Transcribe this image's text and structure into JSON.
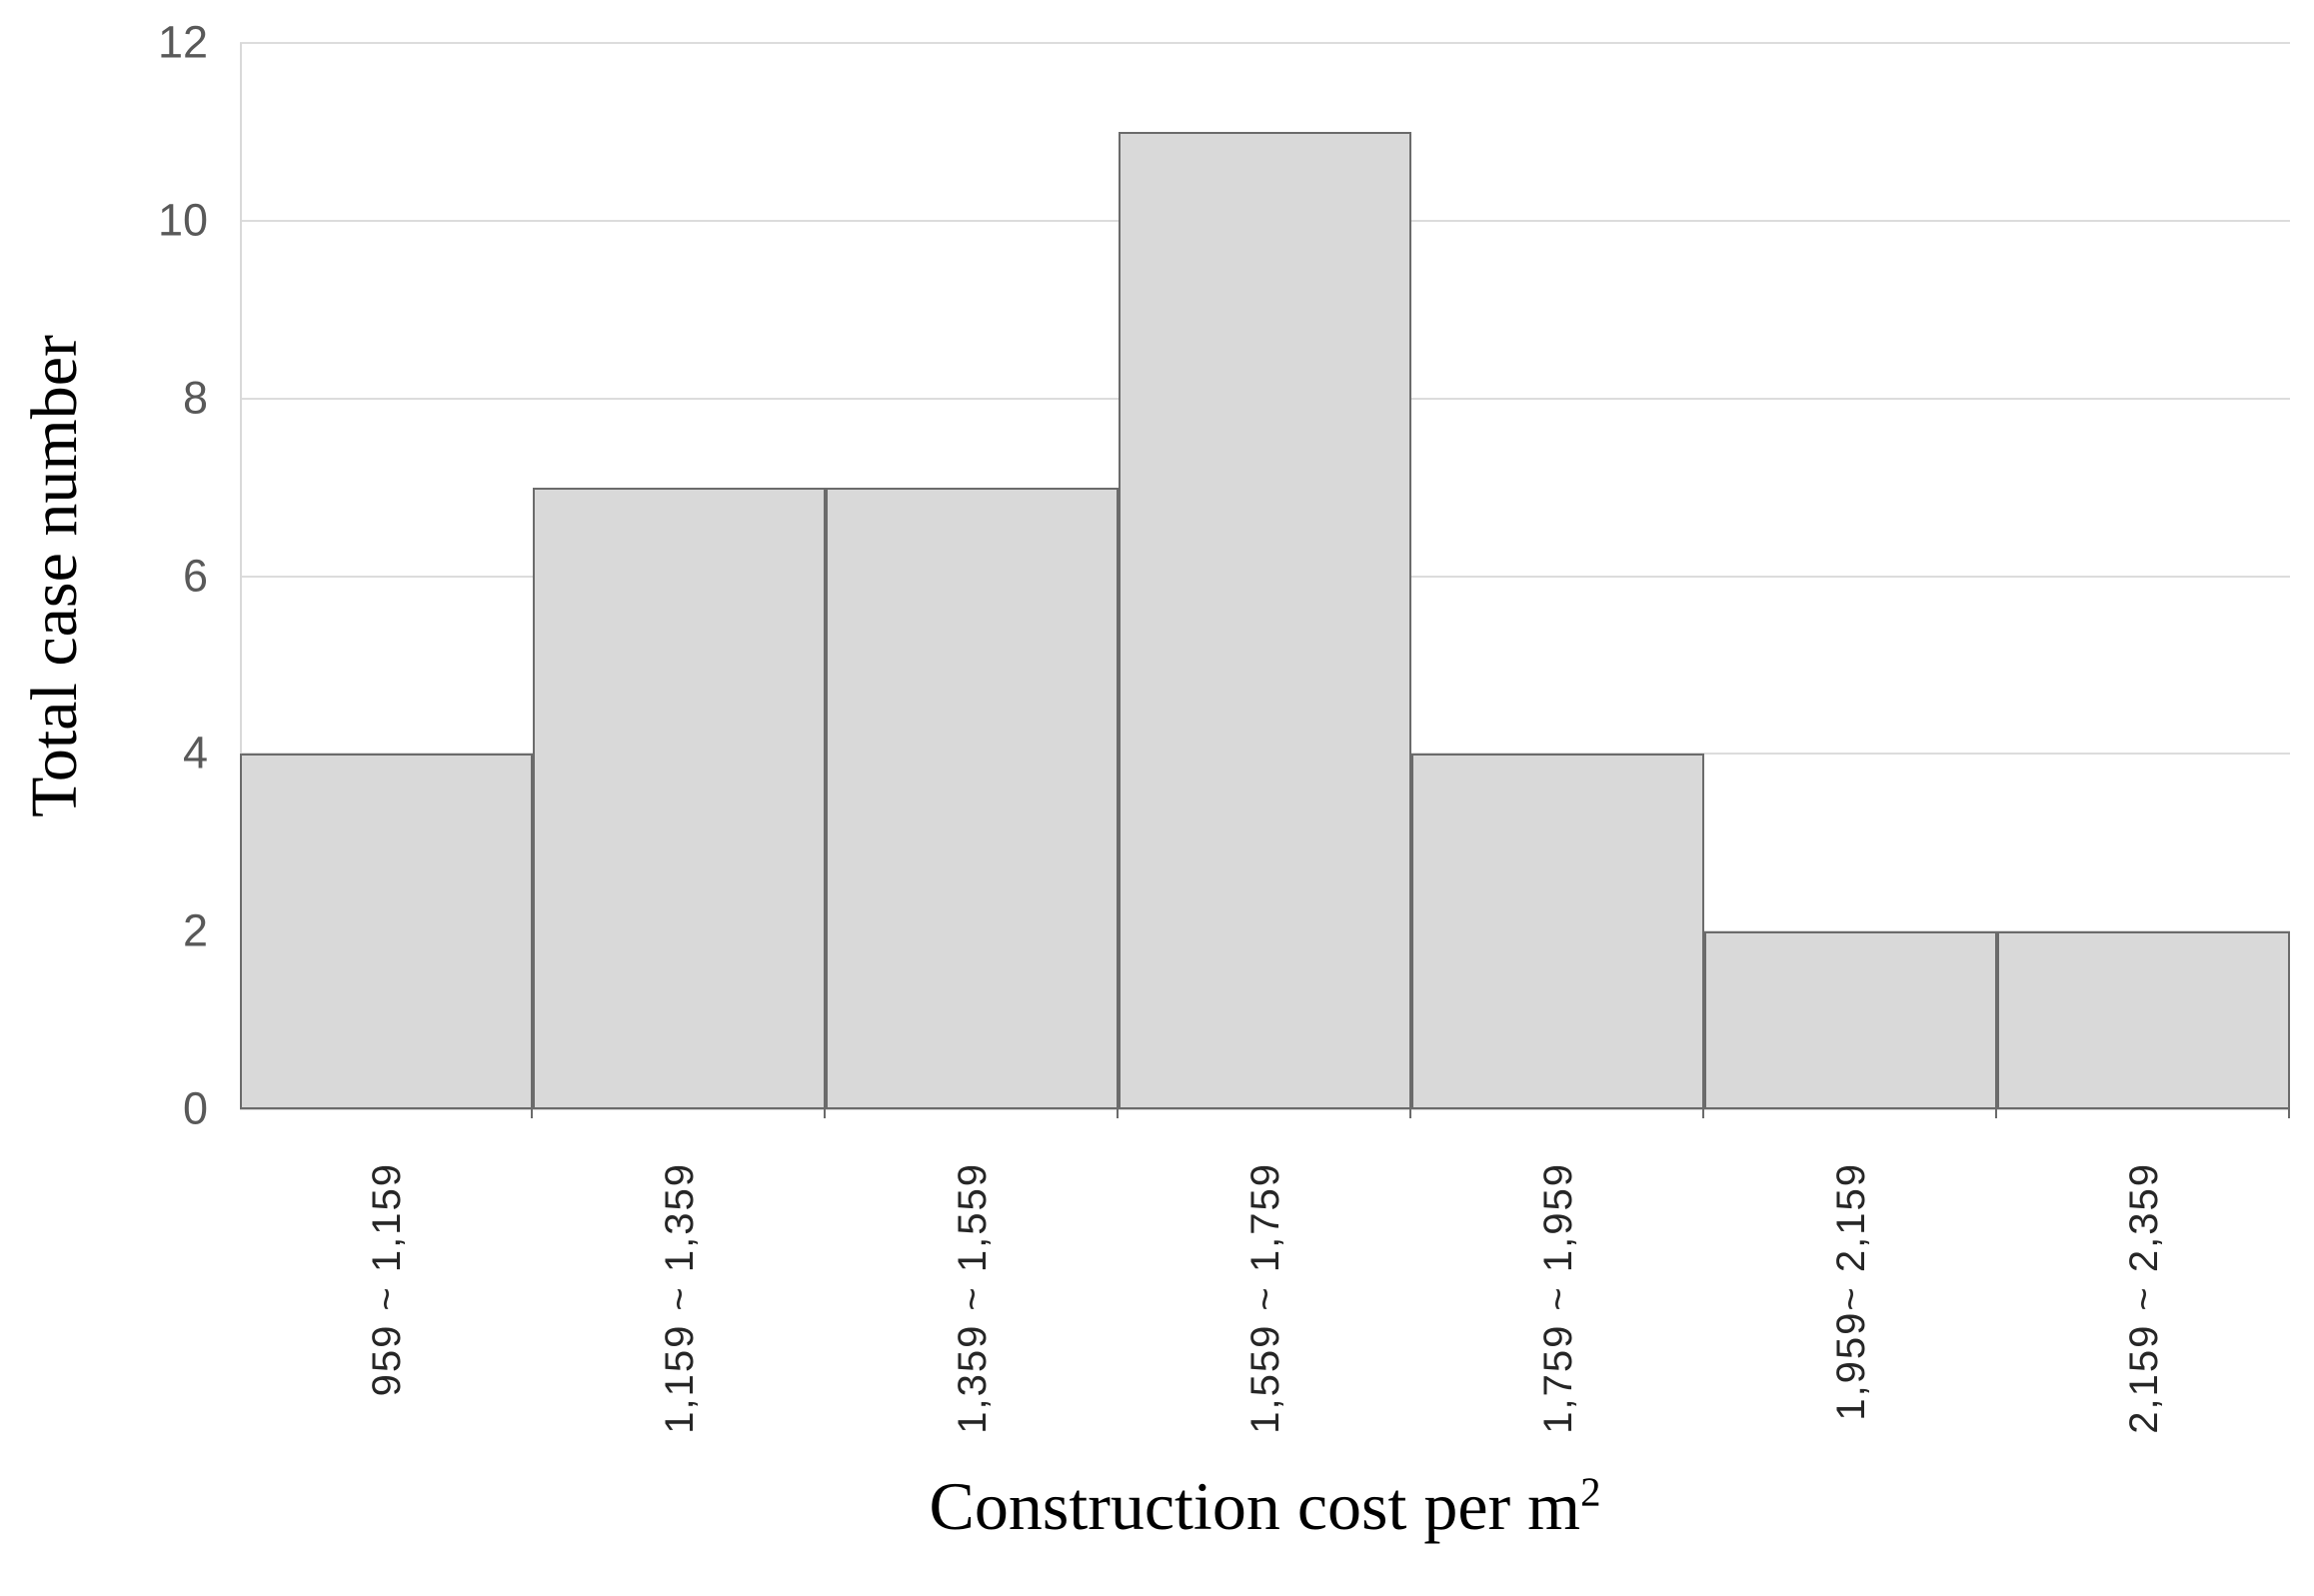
{
  "y_axis": {
    "title": "Total case number",
    "tick_labels": [
      "0",
      "2",
      "4",
      "6",
      "8",
      "10",
      "12"
    ]
  },
  "x_axis": {
    "title_base": "Construction cost per m",
    "title_sup": "2",
    "tick_labels": [
      "959 ~ 1,159",
      "1,159 ~ 1,359",
      "1,359 ~ 1,559",
      "1,559 ~ 1,759",
      "1,759 ~ 1,959",
      "1,959~ 2,159",
      "2,159 ~ 2,359"
    ]
  },
  "chart_data": {
    "type": "bar",
    "subtype": "histogram",
    "title": "",
    "xlabel": "Construction cost per m²",
    "ylabel": "Total case number",
    "categories": [
      "959 ~ 1,159",
      "1,159 ~ 1,359",
      "1,359 ~ 1,559",
      "1,559 ~ 1,759",
      "1,759 ~ 1,959",
      "1,959~ 2,159",
      "2,159 ~ 2,359"
    ],
    "values": [
      4,
      7,
      7,
      11,
      4,
      2,
      2
    ],
    "ylim": [
      0,
      12
    ],
    "yticks": [
      0,
      2,
      4,
      6,
      8,
      10,
      12
    ],
    "grid": true,
    "legend": false,
    "gap_between_bars": false,
    "colors": {
      "bar_fill": "#d9d9d9",
      "bar_border": "#6b6b6b",
      "gridline": "#dcdcdc",
      "axis_line": "#d9d9d9",
      "tick_mark": "#6b6b6b",
      "y_tick_label": "#595959",
      "x_tick_label": "#262626",
      "title": "#000000"
    }
  }
}
